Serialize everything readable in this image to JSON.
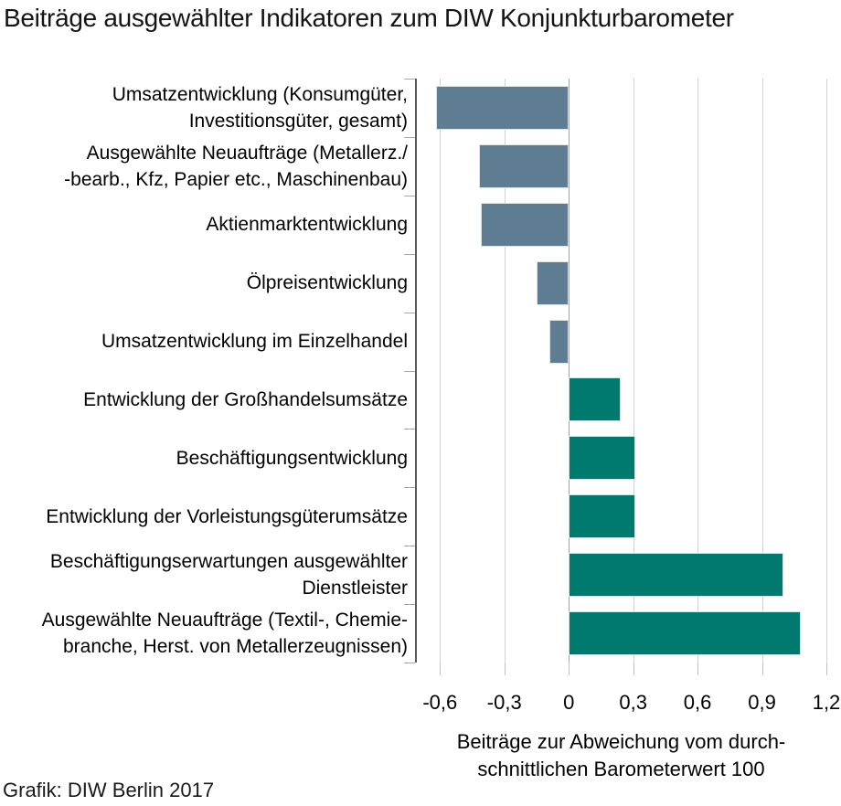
{
  "title": "Beiträge ausgewählter Indikatoren zum DIW Konjunkturbarometer",
  "source": "Grafik: DIW Berlin 2017",
  "chart_data": {
    "type": "bar",
    "orientation": "horizontal",
    "title": "Beiträge ausgewählter Indikatoren zum DIW Konjunkturbarometer",
    "categories": [
      "Umsatzentwicklung (Konsumgüter, Investitionsgüter, gesamt)",
      "Ausgewählte Neuaufträge (Metallerz./ -bearb., Kfz, Papier etc., Maschinenbau)",
      "Aktienmarktentwicklung",
      "Ölpreisentwicklung",
      "Umsatzentwicklung im Einzelhandel",
      "Entwicklung der Großhandelsumsätze",
      "Beschäftigungsentwicklung",
      "Entwicklung der Vorleistungsgüterumsätze",
      "Beschäftigungserwartungen ausgewählter Dienstleister",
      "Ausgewählte Neuaufträge (Textil-, Chemiebranche, Herst. von Metallerzeugnissen)"
    ],
    "category_label_lines": [
      [
        "Umsatzentwicklung (Konsumgüter,",
        "Investitionsgüter, gesamt)"
      ],
      [
        "Ausgewählte Neuaufträge (Metallerz./",
        "-bearb., Kfz, Papier etc., Maschinenbau)"
      ],
      [
        "Aktienmarktentwicklung"
      ],
      [
        "Ölpreisentwicklung"
      ],
      [
        "Umsatzentwicklung im Einzelhandel"
      ],
      [
        "Entwicklung der Großhandelsumsätze"
      ],
      [
        "Beschäftigungsentwicklung"
      ],
      [
        "Entwicklung der Vorleistungsgüterumsätze"
      ],
      [
        "Beschäftigungserwartungen ausgewählter",
        "Dienstleister"
      ],
      [
        "Ausgewählte Neuaufträge (Textil-, Chemie-",
        "branche, Herst. von Metallerzeugnissen)"
      ]
    ],
    "values": [
      -0.62,
      -0.42,
      -0.41,
      -0.15,
      -0.09,
      0.24,
      0.31,
      0.31,
      1.0,
      1.08
    ],
    "xlabel_lines": [
      "Beiträge zur Abweichung vom durch-",
      "schnittlichen Barometerwert 100"
    ],
    "xlim": [
      -0.712,
      1.2
    ],
    "ticks": [
      {
        "value": -0.6,
        "label": "-0,6"
      },
      {
        "value": -0.3,
        "label": "-0,3"
      },
      {
        "value": 0,
        "label": "0"
      },
      {
        "value": 0.3,
        "label": "0,3"
      },
      {
        "value": 0.6,
        "label": "0,6"
      },
      {
        "value": 0.9,
        "label": "0,9"
      },
      {
        "value": 1.2,
        "label": "1,2"
      }
    ],
    "grid": true,
    "legend": "none",
    "colors": {
      "negative_bar": "#5f7d92",
      "positive_bar": "#007a6f",
      "gridline": "#d2d2d2",
      "zero_line": "#a6a6a6",
      "axis_line": "#595959",
      "tick": "#a6a6a6",
      "text": "#000000"
    }
  }
}
